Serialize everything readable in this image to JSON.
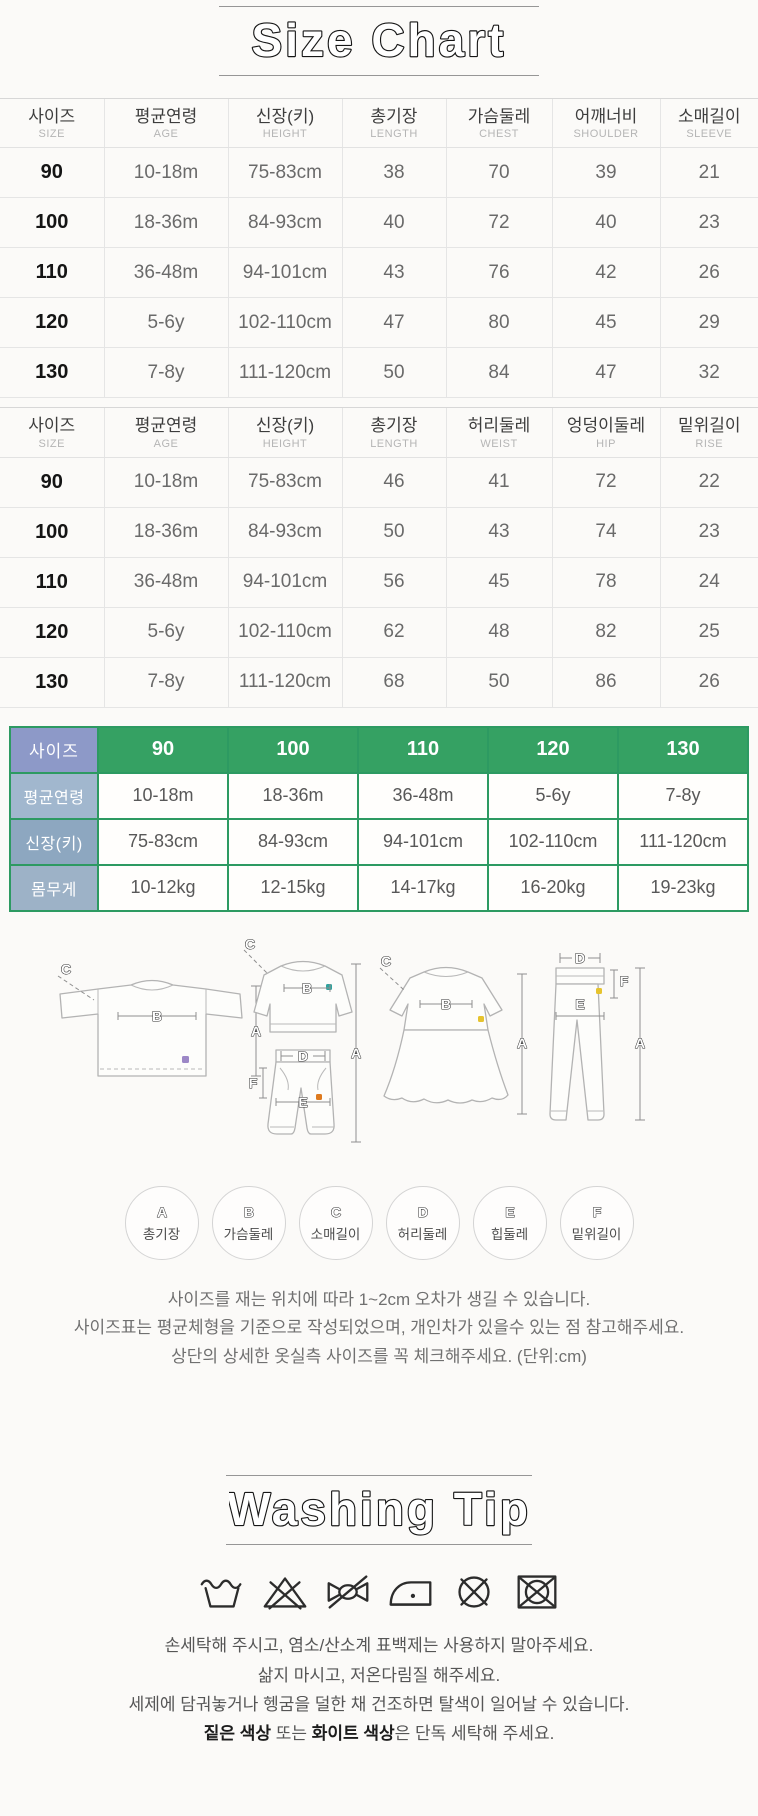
{
  "titles": {
    "size_chart": "Size Chart",
    "washing_tip": "Washing Tip"
  },
  "top_table": {
    "columns": [
      {
        "ko": "사이즈",
        "en": "SIZE"
      },
      {
        "ko": "평균연령",
        "en": "AGE"
      },
      {
        "ko": "신장(키)",
        "en": "HEIGHT"
      },
      {
        "ko": "총기장",
        "en": "LENGTH"
      },
      {
        "ko": "가슴둘레",
        "en": "CHEST"
      },
      {
        "ko": "어깨너비",
        "en": "SHOULDER"
      },
      {
        "ko": "소매길이",
        "en": "SLEEVE"
      }
    ],
    "rows": [
      [
        "90",
        "10-18m",
        "75-83cm",
        "38",
        "70",
        "39",
        "21"
      ],
      [
        "100",
        "18-36m",
        "84-93cm",
        "40",
        "72",
        "40",
        "23"
      ],
      [
        "110",
        "36-48m",
        "94-101cm",
        "43",
        "76",
        "42",
        "26"
      ],
      [
        "120",
        "5-6y",
        "102-110cm",
        "47",
        "80",
        "45",
        "29"
      ],
      [
        "130",
        "7-8y",
        "111-120cm",
        "50",
        "84",
        "47",
        "32"
      ]
    ]
  },
  "bottom_table": {
    "columns": [
      {
        "ko": "사이즈",
        "en": "SIZE"
      },
      {
        "ko": "평균연령",
        "en": "AGE"
      },
      {
        "ko": "신장(키)",
        "en": "HEIGHT"
      },
      {
        "ko": "총기장",
        "en": "LENGTH"
      },
      {
        "ko": "허리둘레",
        "en": "WEIST"
      },
      {
        "ko": "엉덩이둘레",
        "en": "HIP"
      },
      {
        "ko": "밑위길이",
        "en": "RISE"
      }
    ],
    "rows": [
      [
        "90",
        "10-18m",
        "75-83cm",
        "46",
        "41",
        "72",
        "22"
      ],
      [
        "100",
        "18-36m",
        "84-93cm",
        "50",
        "43",
        "74",
        "23"
      ],
      [
        "110",
        "36-48m",
        "94-101cm",
        "56",
        "45",
        "78",
        "24"
      ],
      [
        "120",
        "5-6y",
        "102-110cm",
        "62",
        "48",
        "82",
        "25"
      ],
      [
        "130",
        "7-8y",
        "111-120cm",
        "68",
        "50",
        "86",
        "26"
      ]
    ]
  },
  "summary_table": {
    "corner_label": "사이즈",
    "sizes": [
      "90",
      "100",
      "110",
      "120",
      "130"
    ],
    "rows": [
      {
        "label": "평균연령",
        "values": [
          "10-18m",
          "18-36m",
          "36-48m",
          "5-6y",
          "7-8y"
        ]
      },
      {
        "label": "신장(키)",
        "values": [
          "75-83cm",
          "84-93cm",
          "94-101cm",
          "102-110cm",
          "111-120cm"
        ]
      },
      {
        "label": "몸무게",
        "values": [
          "10-12kg",
          "12-15kg",
          "14-17kg",
          "16-20kg",
          "19-23kg"
        ]
      }
    ],
    "colors": {
      "header_green": "#35a163",
      "corner_blue": "#8d99c8",
      "label_blue_1": "#a1b7ce",
      "label_blue_2": "#8da7c0",
      "label_blue_3": "#9db2c7",
      "border_green": "#2d9a62"
    }
  },
  "diagram": {
    "letters": {
      "A": "A",
      "B": "B",
      "C": "C",
      "D": "D",
      "E": "E",
      "F": "F"
    },
    "marker_colors": {
      "tee_purple": "#9c87c6",
      "top_teal": "#2fa39e",
      "pants_orange": "#de7a1e",
      "dress_yellow": "#e6c32e",
      "leggings_yellow": "#e6c32e"
    }
  },
  "legend": {
    "items": [
      {
        "letter": "A",
        "label": "총기장"
      },
      {
        "letter": "B",
        "label": "가슴둘레"
      },
      {
        "letter": "C",
        "label": "소매길이"
      },
      {
        "letter": "D",
        "label": "허리둘레"
      },
      {
        "letter": "E",
        "label": "힙둘레"
      },
      {
        "letter": "F",
        "label": "밑위길이"
      }
    ]
  },
  "size_notes": {
    "line1": "사이즈를 재는 위치에 따라 1~2cm 오차가 생길 수 있습니다.",
    "line2": "사이즈표는 평균체형을 기준으로 작성되었으며, 개인차가 있을수 있는 점 참고해주세요.",
    "line3": "상단의 상세한 옷실측 사이즈를 꼭 체크해주세요. (단위:cm)"
  },
  "washing": {
    "icons": [
      "hand-wash-icon",
      "no-bleach-icon",
      "no-wring-icon",
      "iron-low-icon",
      "no-dry-clean-icon",
      "no-tumble-dry-icon"
    ],
    "line1": "손세탁해 주시고, 염소/산소계 표백제는 사용하지 말아주세요.",
    "line2": "삶지 마시고, 저온다림질 해주세요.",
    "line3": "세제에 담궈놓거나 헹굼을 덜한 채 건조하면 탈색이 일어날 수 있습니다.",
    "line4": {
      "b1": "짙은 색상",
      "m1": " 또는 ",
      "b2": "화이트 색상",
      "m2": "은 단독 세탁해 주세요."
    }
  }
}
